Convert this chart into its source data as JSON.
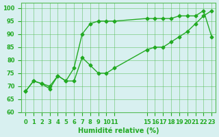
{
  "xlabel": "Humidité relative (%)",
  "xlim": [
    -0.5,
    23.5
  ],
  "ylim": [
    60,
    102
  ],
  "yticks": [
    60,
    65,
    70,
    75,
    80,
    85,
    90,
    95,
    100
  ],
  "xtick_positions": [
    0,
    1,
    2,
    3,
    4,
    5,
    6,
    7,
    8,
    9,
    10,
    11,
    15,
    16,
    17,
    18,
    19,
    20,
    21,
    22,
    23
  ],
  "xtick_labels": [
    "0",
    "1",
    "2",
    "3",
    "4",
    "5",
    "6",
    "7",
    "8",
    "9",
    "10",
    "11",
    "15",
    "16",
    "17",
    "18",
    "19",
    "20",
    "21",
    "22",
    "23"
  ],
  "bg_color": "#d8f0f0",
  "grid_color": "#55bb55",
  "line_color": "#22aa22",
  "line1_x": [
    0,
    1,
    2,
    3,
    4,
    5,
    6,
    7,
    8,
    9,
    10,
    11,
    15,
    16,
    17,
    18,
    19,
    20,
    21,
    22,
    23
  ],
  "line1_y": [
    68,
    72,
    71,
    70,
    74,
    72,
    77,
    90,
    94,
    95,
    95,
    95,
    96,
    96,
    96,
    96,
    97,
    97,
    97,
    99,
    89
  ],
  "line2_x": [
    0,
    1,
    2,
    3,
    4,
    5,
    6,
    7,
    8,
    9,
    10,
    11,
    15,
    16,
    17,
    18,
    19,
    20,
    21,
    22,
    23
  ],
  "line2_y": [
    68,
    72,
    71,
    69,
    74,
    72,
    72,
    81,
    78,
    75,
    75,
    77,
    84,
    85,
    85,
    87,
    89,
    91,
    94,
    97,
    99
  ]
}
